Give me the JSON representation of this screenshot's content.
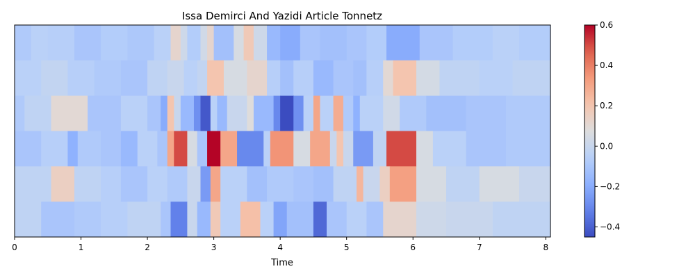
{
  "chart_data": {
    "type": "heatmap",
    "title": "Issa Demirci And Yazidi Article Tonnetz",
    "xlabel": "Time",
    "ylabel": "",
    "xlim": [
      0,
      8.07
    ],
    "x_ticks": [
      0,
      1,
      2,
      3,
      4,
      5,
      6,
      7,
      8
    ],
    "y_ticks": [],
    "colormap": "coolwarm",
    "clim": [
      -0.45,
      0.6
    ],
    "colorbar": {
      "ticks": [
        -0.4,
        -0.2,
        0.0,
        0.2,
        0.4,
        0.6
      ],
      "tick_labels": [
        "−0.4",
        "−0.2",
        "0.0",
        "0.2",
        "0.4",
        "0.6"
      ]
    },
    "row_order": "top-to-bottom",
    "rows": [
      {
        "segments": [
          [
            0,
            0.25,
            -0.08
          ],
          [
            0.25,
            0.5,
            -0.05
          ],
          [
            0.5,
            0.9,
            -0.06
          ],
          [
            0.9,
            1.3,
            -0.1
          ],
          [
            1.3,
            1.7,
            -0.07
          ],
          [
            1.7,
            2.1,
            -0.09
          ],
          [
            2.1,
            2.35,
            -0.05
          ],
          [
            2.35,
            2.5,
            0.12
          ],
          [
            2.5,
            2.6,
            0.02
          ],
          [
            2.6,
            2.8,
            -0.07
          ],
          [
            2.8,
            2.9,
            0.03
          ],
          [
            2.9,
            3.0,
            0.12
          ],
          [
            3.0,
            3.3,
            -0.12
          ],
          [
            3.3,
            3.45,
            0.05
          ],
          [
            3.45,
            3.6,
            0.18
          ],
          [
            3.6,
            3.8,
            0.02
          ],
          [
            3.8,
            4.0,
            -0.15
          ],
          [
            4.0,
            4.3,
            -0.2
          ],
          [
            4.3,
            4.6,
            -0.1
          ],
          [
            4.6,
            5.0,
            -0.12
          ],
          [
            5.0,
            5.3,
            -0.1
          ],
          [
            5.3,
            5.6,
            -0.07
          ],
          [
            5.6,
            6.1,
            -0.2
          ],
          [
            6.1,
            6.6,
            -0.1
          ],
          [
            6.6,
            7.2,
            -0.07
          ],
          [
            7.2,
            7.6,
            -0.05
          ],
          [
            7.6,
            8.07,
            -0.07
          ]
        ]
      },
      {
        "segments": [
          [
            0,
            0.4,
            -0.05
          ],
          [
            0.4,
            0.8,
            -0.02
          ],
          [
            0.8,
            1.2,
            -0.06
          ],
          [
            1.2,
            1.6,
            -0.08
          ],
          [
            1.6,
            2.0,
            -0.1
          ],
          [
            2.0,
            2.3,
            -0.03
          ],
          [
            2.3,
            2.55,
            0.0
          ],
          [
            2.55,
            2.75,
            -0.05
          ],
          [
            2.75,
            2.9,
            -0.02
          ],
          [
            2.9,
            3.15,
            0.2
          ],
          [
            3.15,
            3.5,
            0.05
          ],
          [
            3.5,
            3.8,
            0.12
          ],
          [
            3.8,
            4.0,
            -0.06
          ],
          [
            4.0,
            4.2,
            -0.12
          ],
          [
            4.2,
            4.5,
            -0.06
          ],
          [
            4.5,
            4.8,
            -0.15
          ],
          [
            4.8,
            5.1,
            -0.1
          ],
          [
            5.1,
            5.3,
            -0.12
          ],
          [
            5.3,
            5.55,
            -0.06
          ],
          [
            5.55,
            5.7,
            0.1
          ],
          [
            5.7,
            6.05,
            0.2
          ],
          [
            6.05,
            6.4,
            0.04
          ],
          [
            6.4,
            7.0,
            -0.03
          ],
          [
            7.0,
            7.5,
            -0.05
          ],
          [
            7.5,
            8.07,
            -0.03
          ]
        ]
      },
      {
        "segments": [
          [
            0,
            0.15,
            -0.08
          ],
          [
            0.15,
            0.55,
            -0.03
          ],
          [
            0.55,
            1.1,
            0.1
          ],
          [
            1.1,
            1.6,
            -0.1
          ],
          [
            1.6,
            2.0,
            -0.05
          ],
          [
            2.0,
            2.2,
            -0.1
          ],
          [
            2.2,
            2.3,
            -0.2
          ],
          [
            2.3,
            2.4,
            0.2
          ],
          [
            2.4,
            2.5,
            0.0
          ],
          [
            2.5,
            2.7,
            -0.15
          ],
          [
            2.7,
            2.8,
            -0.28
          ],
          [
            2.8,
            2.95,
            -0.42
          ],
          [
            2.95,
            3.05,
            -0.05
          ],
          [
            3.05,
            3.2,
            -0.15
          ],
          [
            3.2,
            3.5,
            0.0
          ],
          [
            3.5,
            3.6,
            0.08
          ],
          [
            3.6,
            3.9,
            -0.15
          ],
          [
            3.9,
            4.0,
            -0.3
          ],
          [
            4.0,
            4.2,
            -0.45
          ],
          [
            4.2,
            4.35,
            -0.28
          ],
          [
            4.35,
            4.5,
            -0.05
          ],
          [
            4.5,
            4.6,
            0.3
          ],
          [
            4.6,
            4.8,
            -0.05
          ],
          [
            4.8,
            4.95,
            0.28
          ],
          [
            4.95,
            5.1,
            -0.08
          ],
          [
            5.1,
            5.2,
            -0.18
          ],
          [
            5.2,
            5.55,
            -0.05
          ],
          [
            5.55,
            5.8,
            0.03
          ],
          [
            5.8,
            6.2,
            -0.08
          ],
          [
            6.2,
            6.8,
            -0.12
          ],
          [
            6.8,
            7.4,
            -0.1
          ],
          [
            7.4,
            8.07,
            -0.08
          ]
        ]
      },
      {
        "segments": [
          [
            0,
            0.4,
            -0.1
          ],
          [
            0.4,
            0.8,
            -0.06
          ],
          [
            0.8,
            0.95,
            -0.18
          ],
          [
            0.95,
            1.3,
            -0.08
          ],
          [
            1.3,
            1.6,
            -0.1
          ],
          [
            1.6,
            1.85,
            -0.15
          ],
          [
            1.85,
            2.15,
            -0.05
          ],
          [
            2.15,
            2.3,
            -0.1
          ],
          [
            2.3,
            2.4,
            0.3
          ],
          [
            2.4,
            2.6,
            0.5
          ],
          [
            2.6,
            2.75,
            0.05
          ],
          [
            2.75,
            2.9,
            -0.1
          ],
          [
            2.9,
            3.1,
            0.6
          ],
          [
            3.1,
            3.35,
            0.3
          ],
          [
            3.35,
            3.75,
            -0.3
          ],
          [
            3.75,
            3.85,
            -0.05
          ],
          [
            3.85,
            4.2,
            0.35
          ],
          [
            4.2,
            4.45,
            0.05
          ],
          [
            4.45,
            4.75,
            0.3
          ],
          [
            4.75,
            4.85,
            0.0
          ],
          [
            4.85,
            4.95,
            0.2
          ],
          [
            4.95,
            5.1,
            0.0
          ],
          [
            5.1,
            5.4,
            -0.25
          ],
          [
            5.4,
            5.6,
            -0.03
          ],
          [
            5.6,
            6.05,
            0.5
          ],
          [
            6.05,
            6.3,
            0.05
          ],
          [
            6.3,
            6.8,
            -0.05
          ],
          [
            6.8,
            7.4,
            -0.1
          ],
          [
            7.4,
            8.07,
            -0.08
          ]
        ]
      },
      {
        "segments": [
          [
            0,
            0.55,
            -0.03
          ],
          [
            0.55,
            0.9,
            0.15
          ],
          [
            0.9,
            1.3,
            -0.03
          ],
          [
            1.3,
            1.6,
            -0.06
          ],
          [
            1.6,
            2.0,
            -0.1
          ],
          [
            2.0,
            2.3,
            -0.05
          ],
          [
            2.3,
            2.6,
            -0.08
          ],
          [
            2.6,
            2.8,
            0.0
          ],
          [
            2.8,
            2.95,
            -0.25
          ],
          [
            2.95,
            3.1,
            0.3
          ],
          [
            3.1,
            3.5,
            -0.05
          ],
          [
            3.5,
            3.8,
            -0.12
          ],
          [
            3.8,
            4.2,
            -0.08
          ],
          [
            4.2,
            4.5,
            -0.1
          ],
          [
            4.5,
            4.8,
            -0.12
          ],
          [
            4.8,
            5.15,
            -0.03
          ],
          [
            5.15,
            5.25,
            0.25
          ],
          [
            5.25,
            5.5,
            0.0
          ],
          [
            5.5,
            5.65,
            0.15
          ],
          [
            5.65,
            6.05,
            0.32
          ],
          [
            6.05,
            6.5,
            0.05
          ],
          [
            6.5,
            7.0,
            -0.03
          ],
          [
            7.0,
            7.6,
            0.05
          ],
          [
            7.6,
            8.07,
            0.0
          ]
        ]
      },
      {
        "segments": [
          [
            0,
            0.4,
            -0.03
          ],
          [
            0.4,
            0.9,
            -0.1
          ],
          [
            0.9,
            1.3,
            -0.08
          ],
          [
            1.3,
            1.7,
            -0.06
          ],
          [
            1.7,
            2.2,
            -0.03
          ],
          [
            2.2,
            2.35,
            -0.1
          ],
          [
            2.35,
            2.6,
            -0.32
          ],
          [
            2.6,
            2.75,
            0.0
          ],
          [
            2.75,
            2.95,
            -0.15
          ],
          [
            2.95,
            3.1,
            0.18
          ],
          [
            3.1,
            3.4,
            -0.05
          ],
          [
            3.4,
            3.7,
            0.22
          ],
          [
            3.7,
            3.9,
            -0.05
          ],
          [
            3.9,
            4.1,
            -0.22
          ],
          [
            4.1,
            4.5,
            -0.12
          ],
          [
            4.5,
            4.7,
            -0.38
          ],
          [
            4.7,
            5.0,
            -0.1
          ],
          [
            5.0,
            5.3,
            -0.05
          ],
          [
            5.3,
            5.55,
            -0.1
          ],
          [
            5.55,
            6.05,
            0.12
          ],
          [
            6.05,
            6.5,
            0.02
          ],
          [
            6.5,
            7.2,
            0.0
          ],
          [
            7.2,
            8.07,
            -0.03
          ]
        ]
      }
    ]
  }
}
